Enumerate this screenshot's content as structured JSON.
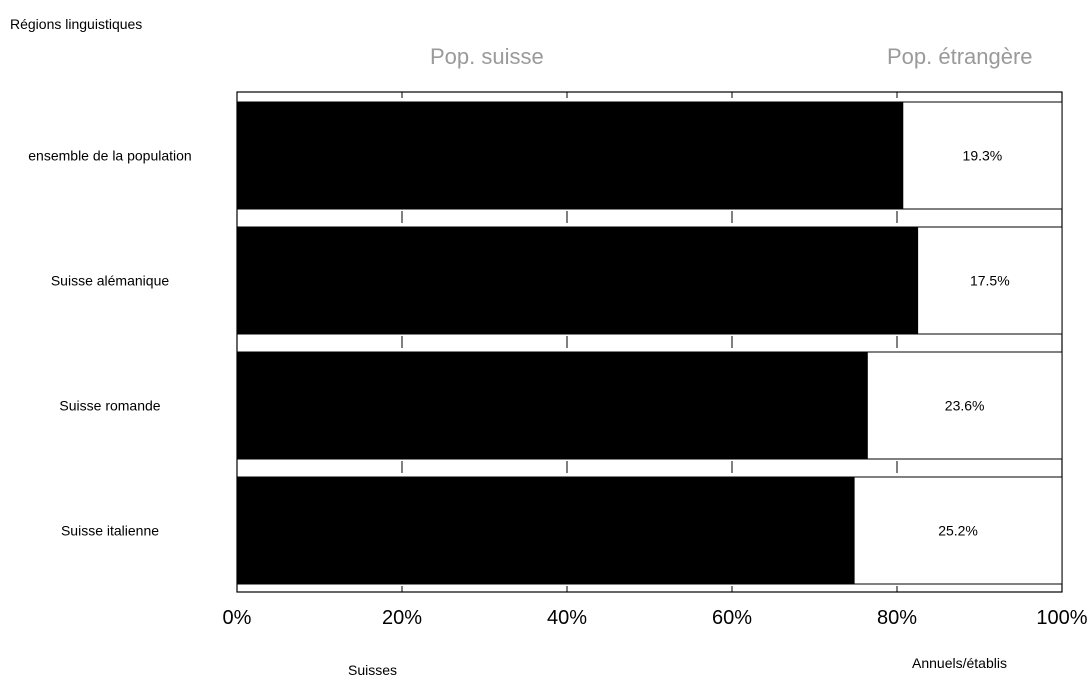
{
  "chart_data": {
    "type": "bar",
    "stacked": true,
    "orientation": "horizontal",
    "title": "",
    "ylabel": "Régions linguistiques",
    "column_headers": [
      "Pop. suisse",
      "Pop. étrangère"
    ],
    "legend": {
      "left": "Suisses",
      "right": "Annuels/établis"
    },
    "categories": [
      "ensemble de la population",
      "Suisse alémanique",
      "Suisse romande",
      "Suisse italienne"
    ],
    "series": [
      {
        "name": "Suisses",
        "color": "#000000",
        "values": [
          80.7,
          82.5,
          76.4,
          74.8
        ]
      },
      {
        "name": "Annuels/établis",
        "color": "#ffffff",
        "values": [
          19.3,
          17.5,
          23.6,
          25.2
        ]
      }
    ],
    "data_labels": [
      "19.3%",
      "17.5%",
      "23.6%",
      "25.2%"
    ],
    "xlim": [
      0,
      100
    ],
    "x_ticks": [
      0,
      20,
      40,
      60,
      80,
      100
    ],
    "x_tick_labels": [
      "0%",
      "20%",
      "40%",
      "60%",
      "80%",
      "100%"
    ],
    "grid": false
  }
}
